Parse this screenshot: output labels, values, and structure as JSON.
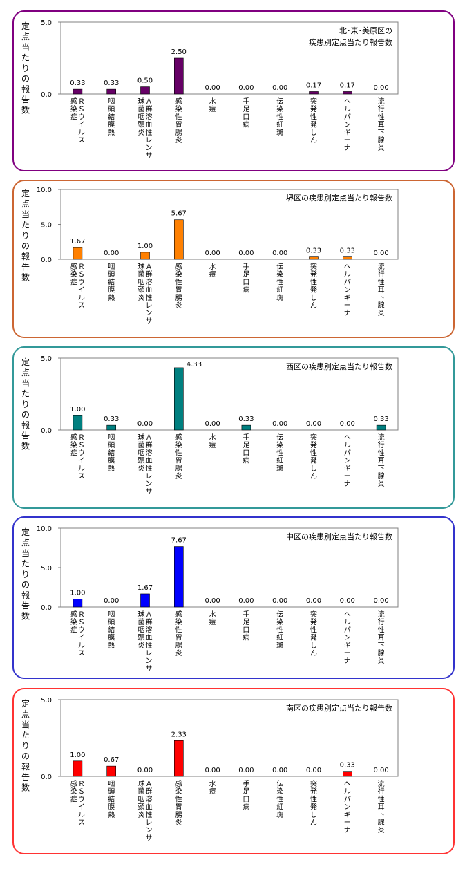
{
  "chart_data": [
    {
      "type": "bar",
      "title_lines": [
        "北･東･美原区の",
        "疾患別定点当たり報告数"
      ],
      "ylabel": "定点当たりの報告数",
      "ylim": [
        0,
        5.0
      ],
      "yticks": [
        "5.0",
        "0.0"
      ],
      "bar_color": "#660066",
      "border_color": "#800080",
      "categories": [
        [
          "ＲＳウイルス",
          "感染症"
        ],
        [
          "咽頭結膜熱"
        ],
        [
          "Ａ群溶血性レンサ",
          "球菌咽頭炎"
        ],
        [
          "感染性胃腸炎"
        ],
        [
          "水痘"
        ],
        [
          "手足口病"
        ],
        [
          "伝染性紅斑"
        ],
        [
          "突発性発しん"
        ],
        [
          "ヘルパンギーナ"
        ],
        [
          "流行性耳下腺炎"
        ]
      ],
      "values": [
        0.33,
        0.33,
        0.5,
        2.5,
        0.0,
        0.0,
        0.0,
        0.17,
        0.17,
        0.0
      ],
      "value_labels": [
        "0.33",
        "0.33",
        "0.50",
        "2.50",
        "0.00",
        "0.00",
        "0.00",
        "0.17",
        "0.17",
        "0.00"
      ]
    },
    {
      "type": "bar",
      "title_lines": [
        "堺区の疾患別定点当たり報告数"
      ],
      "ylabel": "定点当たりの報告数",
      "ylim": [
        0,
        10.0
      ],
      "yticks": [
        "10.0",
        "5.0",
        "0.0"
      ],
      "bar_color": "#ff8000",
      "border_color": "#cc6633",
      "categories": [
        [
          "ＲＳウイルス",
          "感染症"
        ],
        [
          "咽頭結膜熱"
        ],
        [
          "Ａ群溶血性レンサ",
          "球菌咽頭炎"
        ],
        [
          "感染性胃腸炎"
        ],
        [
          "水痘"
        ],
        [
          "手足口病"
        ],
        [
          "伝染性紅斑"
        ],
        [
          "突発性発しん"
        ],
        [
          "ヘルパンギーナ"
        ],
        [
          "流行性耳下腺炎"
        ]
      ],
      "values": [
        1.67,
        0.0,
        1.0,
        5.67,
        0.0,
        0.0,
        0.0,
        0.33,
        0.33,
        0.0
      ],
      "value_labels": [
        "1.67",
        "0.00",
        "1.00",
        "5.67",
        "0.00",
        "0.00",
        "0.00",
        "0.33",
        "0.33",
        "0.00"
      ]
    },
    {
      "type": "bar",
      "title_lines": [
        "西区の疾患別定点当たり報告数"
      ],
      "ylabel": "定点当たりの報告数",
      "ylim": [
        0,
        5.0
      ],
      "yticks": [
        "5.0",
        "0.0"
      ],
      "bar_color": "#008080",
      "border_color": "#339999",
      "categories": [
        [
          "ＲＳウイルス",
          "感染症"
        ],
        [
          "咽頭結膜熱"
        ],
        [
          "Ａ群溶血性レンサ",
          "球菌咽頭炎"
        ],
        [
          "感染性胃腸炎"
        ],
        [
          "水痘"
        ],
        [
          "手足口病"
        ],
        [
          "伝染性紅斑"
        ],
        [
          "突発性発しん"
        ],
        [
          "ヘルパンギーナ"
        ],
        [
          "流行性耳下腺炎"
        ]
      ],
      "values": [
        1.0,
        0.33,
        0.0,
        4.33,
        0.0,
        0.33,
        0.0,
        0.0,
        0.0,
        0.33
      ],
      "value_labels": [
        "1.00",
        "0.33",
        "0.00",
        "4.33",
        "0.00",
        "0.33",
        "0.00",
        "0.00",
        "0.00",
        "0.33"
      ]
    },
    {
      "type": "bar",
      "title_lines": [
        "中区の疾患別定点当たり報告数"
      ],
      "ylabel": "定点当たりの報告数",
      "ylim": [
        0,
        10.0
      ],
      "yticks": [
        "10.0",
        "5.0",
        "0.0"
      ],
      "bar_color": "#0000ff",
      "border_color": "#3333cc",
      "categories": [
        [
          "ＲＳウイルス",
          "感染症"
        ],
        [
          "咽頭結膜熱"
        ],
        [
          "Ａ群溶血性レンサ",
          "球菌咽頭炎"
        ],
        [
          "感染性胃腸炎"
        ],
        [
          "水痘"
        ],
        [
          "手足口病"
        ],
        [
          "伝染性紅斑"
        ],
        [
          "突発性発しん"
        ],
        [
          "ヘルパンギーナ"
        ],
        [
          "流行性耳下腺炎"
        ]
      ],
      "values": [
        1.0,
        0.0,
        1.67,
        7.67,
        0.0,
        0.0,
        0.0,
        0.0,
        0.0,
        0.0
      ],
      "value_labels": [
        "1.00",
        "0.00",
        "1.67",
        "7.67",
        "0.00",
        "0.00",
        "0.00",
        "0.00",
        "0.00",
        "0.00"
      ]
    },
    {
      "type": "bar",
      "title_lines": [
        "南区の疾患別定点当たり報告数"
      ],
      "ylabel": "定点当たりの報告数",
      "ylim": [
        0,
        5.0
      ],
      "yticks": [
        "5.0",
        "0.0"
      ],
      "bar_color": "#ff0000",
      "border_color": "#ff3333",
      "categories": [
        [
          "ＲＳウイルス",
          "感染症"
        ],
        [
          "咽頭結膜熱"
        ],
        [
          "Ａ群溶血性レンサ",
          "球菌咽頭炎"
        ],
        [
          "感染性胃腸炎"
        ],
        [
          "水痘"
        ],
        [
          "手足口病"
        ],
        [
          "伝染性紅斑"
        ],
        [
          "突発性発しん"
        ],
        [
          "ヘルパンギーナ"
        ],
        [
          "流行性耳下腺炎"
        ]
      ],
      "values": [
        1.0,
        0.67,
        0.0,
        2.33,
        0.0,
        0.0,
        0.0,
        0.0,
        0.33,
        0.0
      ],
      "value_labels": [
        "1.00",
        "0.67",
        "0.00",
        "2.33",
        "0.00",
        "0.00",
        "0.00",
        "0.00",
        "0.33",
        "0.00"
      ]
    }
  ]
}
